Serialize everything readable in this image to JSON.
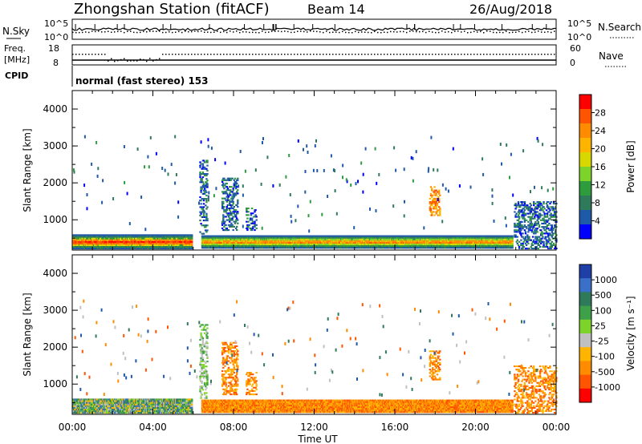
{
  "header": {
    "station": "Zhongshan Station (fitACF)",
    "beam": "Beam 14",
    "date": "26/Aug/2018"
  },
  "strips": {
    "nsky_label": "N.Sky",
    "nsky_ticks": [
      "10^5",
      "10^0"
    ],
    "nsearch_label": "N.Search",
    "nsearch_ticks": [
      "10^5",
      "10^0"
    ],
    "freq_label_1": "Freq.",
    "freq_label_2": "[MHz]",
    "freq_ticks": [
      "18",
      "8"
    ],
    "nave_label": "Nave",
    "nave_ticks": [
      "60",
      "0"
    ],
    "cpid_label": "CPID",
    "cpid_text": "normal (fast stereo) 153"
  },
  "chart_data": [
    {
      "type": "heatmap",
      "name": "power",
      "ylabel": "Slant Range [km]",
      "yticks": [
        "1000",
        "2000",
        "3000",
        "4000"
      ],
      "ylim": [
        180,
        4500
      ],
      "xticks": [
        "00:00",
        "04:00",
        "08:00",
        "12:00",
        "16:00",
        "20:00",
        "00:00"
      ],
      "xlim_hours": [
        0,
        24
      ],
      "xlabel": "Time UT",
      "colorbar_label": "Power [dB]",
      "colorbar_ticks": [
        "28",
        "24",
        "20",
        "16",
        "12",
        "8",
        "4"
      ],
      "colorbar_colors": [
        "#ff0000",
        "#ff5500",
        "#ff8c00",
        "#ffb400",
        "#d8d800",
        "#7ed32b",
        "#2e9b3c",
        "#2e7a5a",
        "#1f5aa8",
        "#0000ff"
      ],
      "features": [
        {
          "t": [
            0.0,
            5.9
          ],
          "r": [
            200,
            580
          ],
          "level": "high"
        },
        {
          "t": [
            6.4,
            21.8
          ],
          "r": [
            220,
            560
          ],
          "level": "mid"
        },
        {
          "t": [
            6.3,
            6.7
          ],
          "r": [
            600,
            2600
          ],
          "level": "low"
        },
        {
          "t": [
            7.4,
            8.2
          ],
          "r": [
            700,
            2100
          ],
          "level": "low"
        },
        {
          "t": [
            8.6,
            9.1
          ],
          "r": [
            700,
            1300
          ],
          "level": "low"
        },
        {
          "t": [
            17.7,
            18.2
          ],
          "r": [
            1100,
            1900
          ],
          "level": "orange"
        },
        {
          "t": [
            21.9,
            24.0
          ],
          "r": [
            200,
            1500
          ],
          "level": "low"
        }
      ]
    },
    {
      "type": "heatmap",
      "name": "velocity",
      "ylabel": "Slant Range [km]",
      "yticks": [
        "1000",
        "2000",
        "3000",
        "4000"
      ],
      "ylim": [
        180,
        4500
      ],
      "xticks": [
        "00:00",
        "04:00",
        "08:00",
        "12:00",
        "16:00",
        "20:00",
        "00:00"
      ],
      "xlim_hours": [
        0,
        24
      ],
      "xlabel": "Time UT",
      "colorbar_label": "Velocity [m s⁻¹]",
      "colorbar_ticks": [
        "1000",
        "500",
        "100",
        "25",
        "-25",
        "-100",
        "-500",
        "-1000"
      ],
      "colorbar_colors": [
        "#1f3fa8",
        "#3a70c8",
        "#2e7a5a",
        "#3fa04a",
        "#7ed32b",
        "#c0c0c0",
        "#ffb400",
        "#ff8c00",
        "#ff5500",
        "#ff0000"
      ],
      "features": [
        {
          "t": [
            0.0,
            5.9
          ],
          "r": [
            200,
            580
          ],
          "level": "green"
        },
        {
          "t": [
            6.4,
            21.8
          ],
          "r": [
            220,
            560
          ],
          "level": "orange"
        },
        {
          "t": [
            6.3,
            6.7
          ],
          "r": [
            600,
            2600
          ],
          "level": "lightgreen"
        },
        {
          "t": [
            7.4,
            8.2
          ],
          "r": [
            700,
            2100
          ],
          "level": "orange"
        },
        {
          "t": [
            8.6,
            9.1
          ],
          "r": [
            700,
            1300
          ],
          "level": "orange"
        },
        {
          "t": [
            17.7,
            18.2
          ],
          "r": [
            1100,
            1900
          ],
          "level": "orange"
        },
        {
          "t": [
            21.9,
            24.0
          ],
          "r": [
            200,
            1500
          ],
          "level": "orange"
        }
      ]
    }
  ]
}
